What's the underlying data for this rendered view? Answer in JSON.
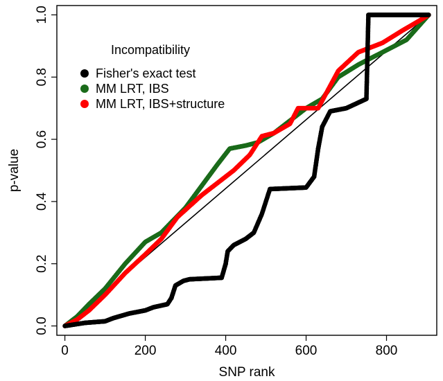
{
  "chart_data": {
    "type": "scatter",
    "title": "",
    "xlabel": "SNP rank",
    "ylabel": "p-value",
    "xlim": [
      -20,
      925
    ],
    "ylim": [
      -0.03,
      1.03
    ],
    "x_ticks": [
      0,
      200,
      400,
      600,
      800
    ],
    "x_tick_labels": [
      "0",
      "200",
      "400",
      "600",
      "800"
    ],
    "y_ticks": [
      0.0,
      0.2,
      0.4,
      0.6,
      0.8,
      1.0
    ],
    "y_tick_labels": [
      "0.0",
      "0.2",
      "0.4",
      "0.6",
      "0.8",
      "1.0"
    ],
    "grid": false,
    "legend": {
      "title": "Incompatibility",
      "position": "top-left",
      "entries": [
        "Fisher's exact test",
        "MM LRT, IBS",
        "MM LRT, IBS+structure"
      ]
    },
    "reference_line": {
      "from": [
        0,
        0
      ],
      "to": [
        905,
        1.0
      ],
      "color": "#000000"
    },
    "n_points": 905,
    "series": [
      {
        "name": "Fisher's exact test",
        "color": "#000000",
        "points": [
          [
            0,
            0.0
          ],
          [
            50,
            0.01
          ],
          [
            100,
            0.015
          ],
          [
            120,
            0.025
          ],
          [
            160,
            0.04
          ],
          [
            200,
            0.05
          ],
          [
            220,
            0.06
          ],
          [
            255,
            0.07
          ],
          [
            265,
            0.09
          ],
          [
            275,
            0.13
          ],
          [
            295,
            0.145
          ],
          [
            310,
            0.15
          ],
          [
            390,
            0.155
          ],
          [
            400,
            0.2
          ],
          [
            405,
            0.24
          ],
          [
            420,
            0.26
          ],
          [
            450,
            0.28
          ],
          [
            470,
            0.3
          ],
          [
            490,
            0.36
          ],
          [
            510,
            0.44
          ],
          [
            600,
            0.445
          ],
          [
            620,
            0.48
          ],
          [
            630,
            0.57
          ],
          [
            640,
            0.64
          ],
          [
            660,
            0.69
          ],
          [
            700,
            0.7
          ],
          [
            750,
            0.73
          ],
          [
            755,
            1.0
          ],
          [
            905,
            1.0
          ]
        ]
      },
      {
        "name": "MM LRT, IBS",
        "color": "#1a6b1a",
        "points": [
          [
            0,
            0.0
          ],
          [
            30,
            0.03
          ],
          [
            60,
            0.07
          ],
          [
            100,
            0.12
          ],
          [
            150,
            0.2
          ],
          [
            200,
            0.27
          ],
          [
            240,
            0.3
          ],
          [
            300,
            0.38
          ],
          [
            340,
            0.45
          ],
          [
            380,
            0.52
          ],
          [
            410,
            0.57
          ],
          [
            450,
            0.58
          ],
          [
            480,
            0.59
          ],
          [
            520,
            0.62
          ],
          [
            560,
            0.66
          ],
          [
            600,
            0.7
          ],
          [
            640,
            0.73
          ],
          [
            680,
            0.8
          ],
          [
            730,
            0.84
          ],
          [
            790,
            0.88
          ],
          [
            850,
            0.92
          ],
          [
            905,
            1.0
          ]
        ]
      },
      {
        "name": "MM LRT, IBS+structure",
        "color": "#ff0000",
        "points": [
          [
            0,
            0.0
          ],
          [
            30,
            0.02
          ],
          [
            60,
            0.05
          ],
          [
            100,
            0.1
          ],
          [
            150,
            0.17
          ],
          [
            200,
            0.23
          ],
          [
            240,
            0.28
          ],
          [
            280,
            0.35
          ],
          [
            340,
            0.42
          ],
          [
            380,
            0.46
          ],
          [
            420,
            0.5
          ],
          [
            460,
            0.55
          ],
          [
            490,
            0.61
          ],
          [
            520,
            0.62
          ],
          [
            560,
            0.65
          ],
          [
            580,
            0.7
          ],
          [
            630,
            0.7
          ],
          [
            680,
            0.82
          ],
          [
            730,
            0.88
          ],
          [
            790,
            0.91
          ],
          [
            840,
            0.95
          ],
          [
            880,
            0.98
          ],
          [
            905,
            1.0
          ]
        ]
      }
    ]
  }
}
